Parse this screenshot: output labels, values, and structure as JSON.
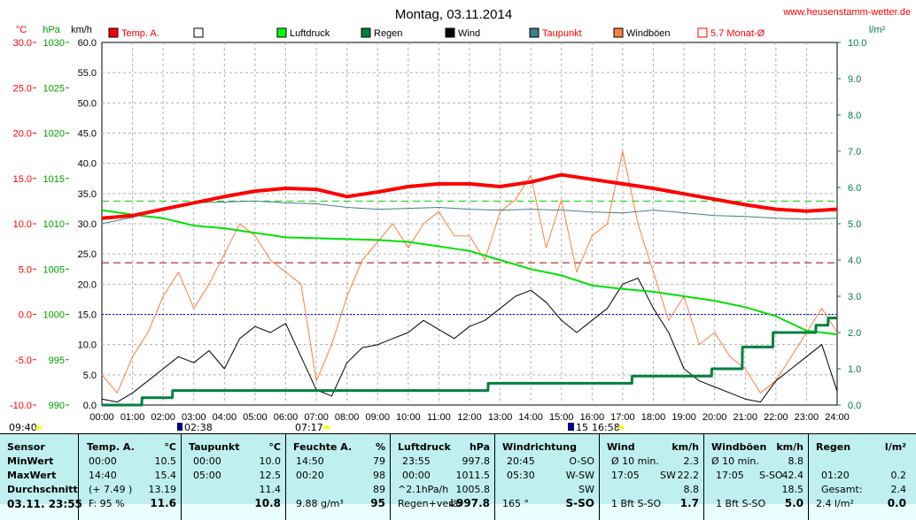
{
  "title": "Montag, 03.11.2014",
  "website": "www.heusenstamm-wetter.de",
  "axes": {
    "temp_unit": "°C",
    "press_unit": "hPa",
    "wind_unit": "km/h",
    "rain_unit": "l/m²",
    "temp_ticks": [
      "30.0",
      "25.0",
      "20.0",
      "15.0",
      "10.0",
      "5.0",
      "0.0",
      "-5.0",
      "-10.0"
    ],
    "press_ticks": [
      "1030",
      "1025",
      "1020",
      "1015",
      "1010",
      "1005",
      "1000",
      "995",
      "990"
    ],
    "wind_ticks": [
      "60.0",
      "55.0",
      "50.0",
      "45.0",
      "40.0",
      "35.0",
      "30.0",
      "25.0",
      "20.0",
      "15.0",
      "10.0",
      "5.0",
      "0.0"
    ],
    "rain_ticks": [
      "10.0",
      "9.0",
      "8.0",
      "7.0",
      "6.0",
      "5.0",
      "4.0",
      "3.0",
      "2.0",
      "1.0",
      "0.0"
    ],
    "hour_ticks": [
      "00:00",
      "01:00",
      "02:00",
      "03:00",
      "04:00",
      "05:00",
      "06:00",
      "07:00",
      "08:00",
      "09:00",
      "10:00",
      "11:00",
      "12:00",
      "13:00",
      "14:00",
      "15:00",
      "16:00",
      "17:00",
      "18:00",
      "19:00",
      "20:00",
      "21:00",
      "22:00",
      "23:00",
      "24:00"
    ]
  },
  "legend": [
    {
      "label": "Temp. A.",
      "color": "#ff0000",
      "style": "fill"
    },
    {
      "label": "",
      "color": "#ffffff",
      "style": "box"
    },
    {
      "label": "Luftdruck",
      "color": "#00ff00",
      "style": "fill"
    },
    {
      "label": "Regen",
      "color": "#008040",
      "style": "fill"
    },
    {
      "label": "Wind",
      "color": "#000000",
      "style": "fill"
    },
    {
      "label": "Taupunkt",
      "color": "#408080",
      "style": "fill"
    },
    {
      "label": "Windböen",
      "color": "#ff8040",
      "style": "fill"
    },
    {
      "label": "5.7 Monat-Ø",
      "color": "#ff0000",
      "style": "box"
    }
  ],
  "sun": {
    "sunrise_marker": "02:38",
    "sunrise": "07:17",
    "sunset": "16:58",
    "moon": "15",
    "daylength": "09:40"
  },
  "colors": {
    "temp": "#ff0000",
    "dew": "#408080",
    "press": "#00e000",
    "rain": "#008040",
    "wind": "#000000",
    "gust": "#ff8040",
    "grid": "#c0c0c0",
    "table_bg": "#bfefef"
  },
  "chart_data": {
    "type": "line",
    "title": "Montag, 03.11.2014",
    "x_unit": "hours",
    "xlim": [
      0,
      24
    ],
    "temp_ylim": [
      -10,
      30
    ],
    "press_ylim": [
      990,
      1030
    ],
    "wind_ylim": [
      0,
      60
    ],
    "rain_ylim": [
      0,
      10
    ],
    "reference_lines": {
      "temp_zero": 0.0,
      "month_avg_temp": 5.7,
      "dew_max": 12.5
    },
    "series": [
      {
        "name": "Temp. A.",
        "axis": "temp",
        "x": [
          0,
          1,
          2,
          3,
          4,
          5,
          6,
          7,
          8,
          9,
          10,
          11,
          12,
          13,
          14,
          15,
          16,
          17,
          18,
          19,
          20,
          21,
          22,
          23,
          24
        ],
        "values": [
          10.6,
          10.9,
          11.6,
          12.3,
          13.0,
          13.6,
          13.9,
          13.8,
          13.0,
          13.5,
          14.1,
          14.4,
          14.4,
          14.1,
          14.6,
          15.4,
          14.9,
          14.4,
          13.9,
          13.3,
          12.7,
          12.1,
          11.6,
          11.4,
          11.6
        ]
      },
      {
        "name": "Taupunkt",
        "axis": "temp",
        "x": [
          0,
          1,
          2,
          3,
          4,
          5,
          6,
          7,
          8,
          9,
          10,
          11,
          12,
          13,
          14,
          15,
          16,
          17,
          18,
          19,
          20,
          21,
          22,
          23,
          24
        ],
        "values": [
          10.0,
          10.7,
          11.6,
          12.3,
          12.4,
          12.5,
          12.3,
          12.2,
          11.8,
          11.6,
          11.7,
          11.8,
          11.6,
          11.5,
          11.6,
          11.5,
          11.3,
          11.2,
          11.5,
          11.2,
          10.9,
          10.8,
          10.6,
          10.5,
          10.6
        ]
      },
      {
        "name": "Luftdruck",
        "axis": "press",
        "x": [
          0,
          1,
          2,
          3,
          4,
          5,
          6,
          7,
          8,
          9,
          10,
          11,
          12,
          13,
          14,
          15,
          16,
          17,
          18,
          19,
          20,
          21,
          22,
          23,
          24
        ],
        "values": [
          1011.5,
          1011.0,
          1010.6,
          1009.8,
          1009.5,
          1009.0,
          1008.5,
          1008.4,
          1008.3,
          1008.2,
          1008.0,
          1007.5,
          1007.0,
          1006.0,
          1005.0,
          1004.3,
          1003.2,
          1002.8,
          1002.5,
          1002.0,
          1001.5,
          1000.8,
          999.8,
          998.2,
          997.8
        ]
      },
      {
        "name": "Regen",
        "axis": "rain",
        "x": [
          0,
          1.3,
          1.31,
          2.3,
          2.31,
          12.6,
          12.61,
          17.3,
          17.31,
          19.9,
          19.91,
          20.9,
          20.91,
          21.9,
          21.91,
          23.3,
          23.31,
          23.7,
          23.71,
          24
        ],
        "values": [
          0,
          0,
          0.2,
          0.2,
          0.4,
          0.4,
          0.6,
          0.6,
          0.8,
          0.8,
          1.0,
          1.0,
          1.6,
          1.6,
          2.0,
          2.0,
          2.2,
          2.2,
          2.4,
          2.4
        ]
      },
      {
        "name": "Wind",
        "axis": "wind",
        "x": [
          0,
          0.5,
          1,
          1.5,
          2,
          2.5,
          3,
          3.5,
          4,
          4.5,
          5,
          5.5,
          6,
          6.5,
          7,
          7.5,
          8,
          8.5,
          9,
          9.5,
          10,
          10.5,
          11,
          11.5,
          12,
          12.5,
          13,
          13.5,
          14,
          14.5,
          15,
          15.5,
          16,
          16.5,
          17,
          17.5,
          18,
          18.5,
          19,
          19.5,
          20,
          20.5,
          21,
          21.5,
          22,
          22.5,
          23,
          23.5,
          24
        ],
        "values": [
          1.0,
          0.5,
          2.0,
          4.0,
          6.0,
          8.0,
          7.0,
          9.0,
          6.0,
          11.0,
          13.0,
          12.0,
          13.5,
          8.0,
          2.5,
          1.5,
          7.0,
          9.5,
          10.0,
          11.0,
          12.0,
          14.0,
          12.5,
          11.0,
          13.0,
          14.0,
          16.0,
          18.0,
          19.0,
          17.0,
          14.0,
          12.0,
          14.0,
          16.0,
          20.0,
          21.0,
          16.0,
          12.0,
          6.0,
          4.0,
          3.0,
          2.0,
          1.0,
          0.5,
          4.0,
          6.0,
          8.0,
          10.0,
          2.3
        ]
      },
      {
        "name": "Windböen",
        "axis": "wind",
        "x": [
          0,
          0.5,
          1,
          1.5,
          2,
          2.5,
          3,
          3.5,
          4,
          4.5,
          5,
          5.5,
          6,
          6.5,
          7,
          7.5,
          8,
          8.5,
          9,
          9.5,
          10,
          10.5,
          11,
          11.5,
          12,
          12.5,
          13,
          13.5,
          14,
          14.5,
          15,
          15.5,
          16,
          16.5,
          17,
          17.5,
          18,
          18.5,
          19,
          19.5,
          20,
          20.5,
          21,
          21.5,
          22,
          22.5,
          23,
          23.5,
          24
        ],
        "values": [
          5.0,
          2.0,
          8.0,
          12.0,
          18.0,
          22.0,
          16.0,
          20.0,
          25.0,
          30.0,
          28.0,
          24.0,
          22.0,
          20.0,
          4.0,
          10.0,
          18.0,
          24.0,
          27.0,
          30.0,
          26.0,
          30.0,
          32.0,
          28.0,
          28.0,
          24.0,
          32.0,
          34.0,
          38.0,
          26.0,
          34.0,
          22.0,
          28.0,
          30.0,
          42.0,
          30.0,
          22.0,
          14.0,
          18.0,
          10.0,
          12.0,
          8.0,
          6.0,
          2.0,
          4.0,
          8.0,
          12.0,
          16.0,
          12.0
        ]
      }
    ]
  },
  "table": {
    "row_labels": [
      "Sensor",
      "MinWert",
      "MaxWert",
      "Durchschnitt",
      "03.11.  23:55"
    ],
    "temp": {
      "header": "Temp. A.",
      "unit": "°C",
      "rows": [
        [
          "00:00",
          "10.5"
        ],
        [
          "14:40",
          "15.4"
        ],
        [
          "(+ 7.49 )",
          "13.19"
        ],
        [
          "F: 95 %",
          "11.6"
        ]
      ]
    },
    "dew": {
      "header": "Taupunkt",
      "unit": "°C",
      "rows": [
        [
          "00:00",
          "10.0"
        ],
        [
          "05:00",
          "12.5"
        ],
        [
          "",
          "11.4"
        ],
        [
          "",
          "10.8"
        ]
      ]
    },
    "hum": {
      "header": "Feuchte A.",
      "unit": "%",
      "rows": [
        [
          "14:50",
          "79"
        ],
        [
          "00:20",
          "98"
        ],
        [
          "",
          "89"
        ],
        [
          "9.88 g/m³",
          "95"
        ]
      ]
    },
    "press": {
      "header": "Luftdruck",
      "unit": "hPa",
      "rows": [
        [
          "23:55",
          "997.8"
        ],
        [
          "00:00",
          "1011.5"
        ],
        [
          "^2.1hPa/h",
          "1005.8"
        ],
        [
          "Regen+verär",
          "↓997.8"
        ]
      ]
    },
    "dir": {
      "header": "Windrichtung",
      "rows": [
        [
          "20:45",
          "O-SO"
        ],
        [
          "05:30",
          "W-SW"
        ],
        [
          "",
          "SW"
        ],
        [
          "165 °",
          "S-SO"
        ]
      ]
    },
    "wind": {
      "header": "Wind",
      "unit": "km/h",
      "rows": [
        [
          "Ø 10 min.",
          "",
          "2.3"
        ],
        [
          "17:05",
          "SW",
          "22.2"
        ],
        [
          "",
          "",
          "8.8"
        ],
        [
          "1 Bft S-SO",
          "",
          "1.7"
        ]
      ]
    },
    "gust": {
      "header": "Windböen",
      "unit": "km/h",
      "rows": [
        [
          "Ø 10 min.",
          "",
          "8.8"
        ],
        [
          "17:05",
          "S-SO",
          "42.4"
        ],
        [
          "",
          "",
          "18.5"
        ],
        [
          "1 Bft S-SO",
          "",
          "5.0"
        ]
      ]
    },
    "rain": {
      "header": "Regen",
      "unit": "l/m²",
      "rows": [
        [
          "",
          ""
        ],
        [
          "01:20",
          "0.2"
        ],
        [
          "Gesamt:",
          "2.4"
        ],
        [
          "2.4 l/m²",
          "0.0"
        ]
      ]
    }
  }
}
